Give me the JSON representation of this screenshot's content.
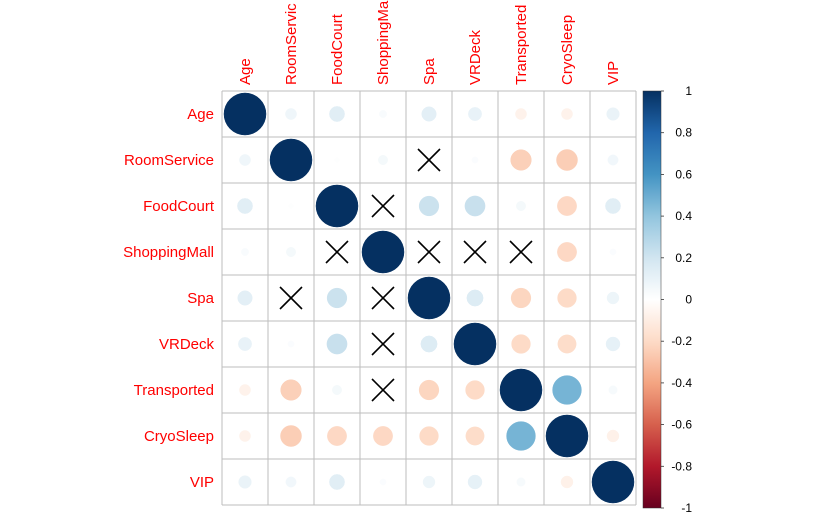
{
  "chart_data": {
    "type": "heatmap",
    "style": "circle correlation matrix",
    "variables": [
      "Age",
      "RoomService",
      "FoodCourt",
      "ShoppingMall",
      "Spa",
      "VRDeck",
      "Transported",
      "CryoSleep",
      "VIP"
    ],
    "column_labels": [
      "Age",
      "RoomServic",
      "FoodCourt",
      "ShoppingMa",
      "Spa",
      "VRDeck",
      "Transported",
      "CryoSleep",
      "VIP"
    ],
    "matrix": [
      [
        1.0,
        0.07,
        0.13,
        0.03,
        0.12,
        0.1,
        -0.07,
        -0.07,
        0.09
      ],
      [
        0.07,
        1.0,
        0.01,
        0.05,
        0.0,
        0.02,
        -0.24,
        -0.25,
        0.06
      ],
      [
        0.13,
        0.01,
        1.0,
        0.0,
        0.22,
        0.23,
        0.05,
        -0.21,
        0.13
      ],
      [
        0.03,
        0.05,
        0.0,
        1.0,
        0.0,
        0.0,
        0.0,
        -0.21,
        0.02
      ],
      [
        0.12,
        0.0,
        0.22,
        0.0,
        1.0,
        0.15,
        -0.22,
        -0.2,
        0.08
      ],
      [
        0.1,
        0.02,
        0.23,
        0.0,
        0.15,
        1.0,
        -0.2,
        -0.19,
        0.11
      ],
      [
        -0.07,
        -0.24,
        0.05,
        0.0,
        -0.22,
        -0.2,
        1.0,
        0.47,
        0.04
      ],
      [
        -0.07,
        -0.25,
        -0.21,
        -0.21,
        -0.2,
        -0.19,
        0.47,
        1.0,
        -0.08
      ],
      [
        0.09,
        0.06,
        0.13,
        0.02,
        0.08,
        0.11,
        0.04,
        -0.08,
        1.0
      ]
    ],
    "insignificant_cells": [
      [
        1,
        4
      ],
      [
        2,
        3
      ],
      [
        3,
        2
      ],
      [
        3,
        4
      ],
      [
        3,
        5
      ],
      [
        3,
        6
      ],
      [
        4,
        1
      ],
      [
        4,
        3
      ],
      [
        5,
        3
      ],
      [
        6,
        3
      ]
    ],
    "legend": {
      "range": [
        -1,
        1
      ],
      "ticks": [
        "1",
        "0.8",
        "0.6",
        "0.4",
        "0.2",
        "0",
        "-0.2",
        "-0.4",
        "-0.6",
        "-0.8",
        "-1"
      ],
      "placement": "right"
    },
    "label_color": "#ff0000",
    "colors": {
      "negative_end": "#67001f",
      "positive_end": "#053061",
      "midpoint": "#ffffff",
      "grid": "#bebebe",
      "cross": "#000000"
    },
    "grid": true
  }
}
